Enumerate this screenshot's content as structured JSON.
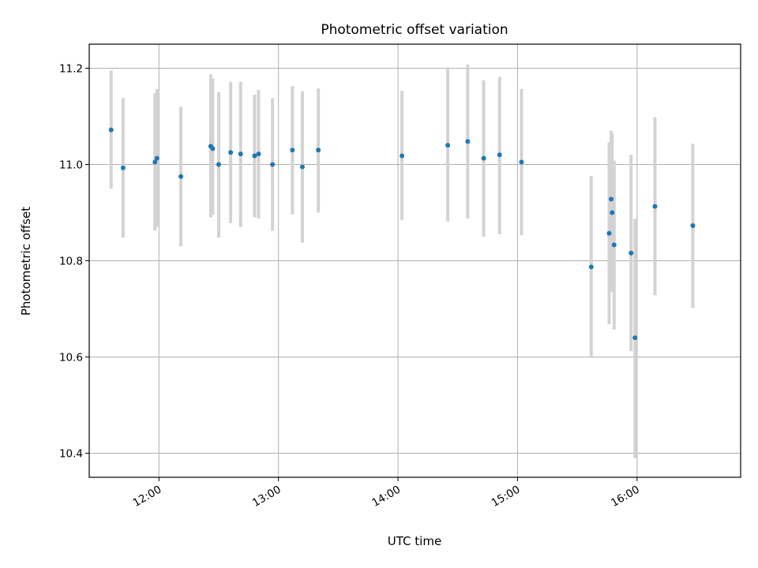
{
  "chart_data": {
    "type": "scatter",
    "title": "Photometric offset variation",
    "xlabel": "UTC time",
    "ylabel": "Photometric offset",
    "x_axis_kind": "time",
    "xlim": [
      "11:25",
      "16:52"
    ],
    "ylim": [
      10.35,
      11.25
    ],
    "xticks": [
      {
        "value": "12:00",
        "label": "12:00"
      },
      {
        "value": "13:00",
        "label": "13:00"
      },
      {
        "value": "14:00",
        "label": "14:00"
      },
      {
        "value": "15:00",
        "label": "15:00"
      },
      {
        "value": "16:00",
        "label": "16:00"
      }
    ],
    "yticks": [
      {
        "value": 10.4,
        "label": "10.4"
      },
      {
        "value": 10.6,
        "label": "10.6"
      },
      {
        "value": 10.8,
        "label": "10.8"
      },
      {
        "value": 11.0,
        "label": "11.0"
      },
      {
        "value": 11.2,
        "label": "11.2"
      }
    ],
    "grid": true,
    "marker_color": "#1f77b4",
    "errorbar_color": "#d3d3d3",
    "points": [
      {
        "x": "11:36",
        "y": 11.072,
        "low": 10.95,
        "high": 11.195
      },
      {
        "x": "11:42",
        "y": 10.993,
        "low": 10.848,
        "high": 11.138
      },
      {
        "x": "11:58",
        "y": 11.005,
        "low": 10.862,
        "high": 11.148
      },
      {
        "x": "11:59",
        "y": 11.013,
        "low": 10.87,
        "high": 11.157
      },
      {
        "x": "12:11",
        "y": 10.975,
        "low": 10.83,
        "high": 11.12
      },
      {
        "x": "12:26",
        "y": 11.038,
        "low": 10.89,
        "high": 11.187
      },
      {
        "x": "12:27",
        "y": 11.033,
        "low": 10.895,
        "high": 11.178
      },
      {
        "x": "12:30",
        "y": 11.0,
        "low": 10.848,
        "high": 11.15
      },
      {
        "x": "12:36",
        "y": 11.025,
        "low": 10.878,
        "high": 11.172
      },
      {
        "x": "12:41",
        "y": 11.022,
        "low": 10.87,
        "high": 11.172
      },
      {
        "x": "12:48",
        "y": 11.018,
        "low": 10.89,
        "high": 11.145
      },
      {
        "x": "12:50",
        "y": 11.022,
        "low": 10.888,
        "high": 11.155
      },
      {
        "x": "12:57",
        "y": 11.0,
        "low": 10.862,
        "high": 11.138
      },
      {
        "x": "13:07",
        "y": 11.03,
        "low": 10.896,
        "high": 11.163
      },
      {
        "x": "13:12",
        "y": 10.995,
        "low": 10.838,
        "high": 11.152
      },
      {
        "x": "13:20",
        "y": 11.03,
        "low": 10.9,
        "high": 11.158
      },
      {
        "x": "14:02",
        "y": 11.018,
        "low": 10.885,
        "high": 11.153
      },
      {
        "x": "14:25",
        "y": 11.04,
        "low": 10.882,
        "high": 11.202
      },
      {
        "x": "14:35",
        "y": 11.048,
        "low": 10.888,
        "high": 11.208
      },
      {
        "x": "14:43",
        "y": 11.013,
        "low": 10.85,
        "high": 11.175
      },
      {
        "x": "14:51",
        "y": 11.02,
        "low": 10.855,
        "high": 11.182
      },
      {
        "x": "15:02",
        "y": 11.005,
        "low": 10.853,
        "high": 11.157
      },
      {
        "x": "15:37",
        "y": 10.787,
        "low": 10.598,
        "high": 10.976
      },
      {
        "x": "15:46",
        "y": 10.857,
        "low": 10.668,
        "high": 11.046
      },
      {
        "x": "15:47",
        "y": 10.928,
        "low": 10.785,
        "high": 11.07
      },
      {
        "x": "15:47:30",
        "y": 10.9,
        "low": 10.735,
        "high": 11.065
      },
      {
        "x": "15:48:30",
        "y": 10.833,
        "low": 10.657,
        "high": 11.008
      },
      {
        "x": "15:57",
        "y": 10.816,
        "low": 10.612,
        "high": 11.02
      },
      {
        "x": "15:59",
        "y": 10.64,
        "low": 10.39,
        "high": 10.887
      },
      {
        "x": "16:09",
        "y": 10.913,
        "low": 10.728,
        "high": 11.098
      },
      {
        "x": "16:28",
        "y": 10.873,
        "low": 10.702,
        "high": 11.043
      }
    ]
  }
}
